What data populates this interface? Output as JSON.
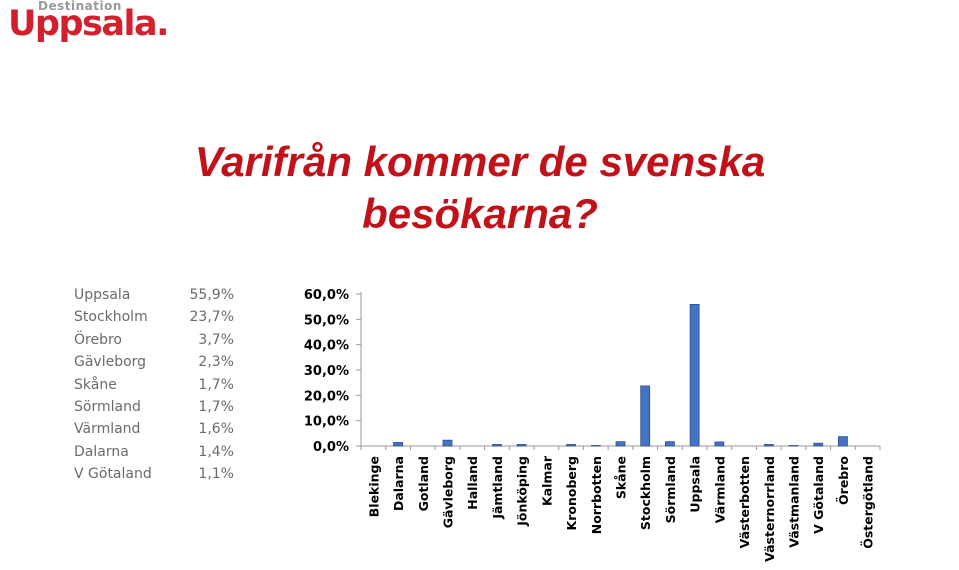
{
  "logo": {
    "small": "Destination",
    "big": "Uppsala."
  },
  "title": {
    "line1": "Varifrån kommer de svenska",
    "line2": "besökarna?"
  },
  "stats": [
    {
      "name": "Uppsala",
      "value": "55,9%"
    },
    {
      "name": "Stockholm",
      "value": "23,7%"
    },
    {
      "name": "Örebro",
      "value": "3,7%"
    },
    {
      "name": "Gävleborg",
      "value": "2,3%"
    },
    {
      "name": "Skåne",
      "value": "1,7%"
    },
    {
      "name": "Sörmland",
      "value": "1,7%"
    },
    {
      "name": "Värmland",
      "value": "1,6%"
    },
    {
      "name": "Dalarna",
      "value": "1,4%"
    },
    {
      "name": "V Götaland",
      "value": "1,1%"
    }
  ],
  "colors": {
    "bar": "#4472c4",
    "bar_edge": "#2c4f8a",
    "title": "#c01218",
    "brand": "#d2202e"
  },
  "chart_data": {
    "type": "bar",
    "categories": [
      "Blekinge",
      "Dalarna",
      "Gotland",
      "Gävleborg",
      "Halland",
      "Jämtland",
      "Jönköping",
      "Kalmar",
      "Kronoberg",
      "Norrbotten",
      "Skåne",
      "Stockholm",
      "Sörmland",
      "Uppsala",
      "Värmland",
      "Västerbotten",
      "Västernorrland",
      "Västmanland",
      "V Götaland",
      "Örebro",
      "Östergötland"
    ],
    "values": [
      0.0,
      1.4,
      0.0,
      2.3,
      0.0,
      0.6,
      0.6,
      0.0,
      0.6,
      0.2,
      1.7,
      23.7,
      1.7,
      55.9,
      1.6,
      0.0,
      0.6,
      0.2,
      1.1,
      3.7,
      0.0
    ],
    "ylim": [
      0,
      60
    ],
    "yticks": [
      "0,0%",
      "10,0%",
      "20,0%",
      "30,0%",
      "40,0%",
      "50,0%",
      "60,0%"
    ],
    "grid": false
  }
}
